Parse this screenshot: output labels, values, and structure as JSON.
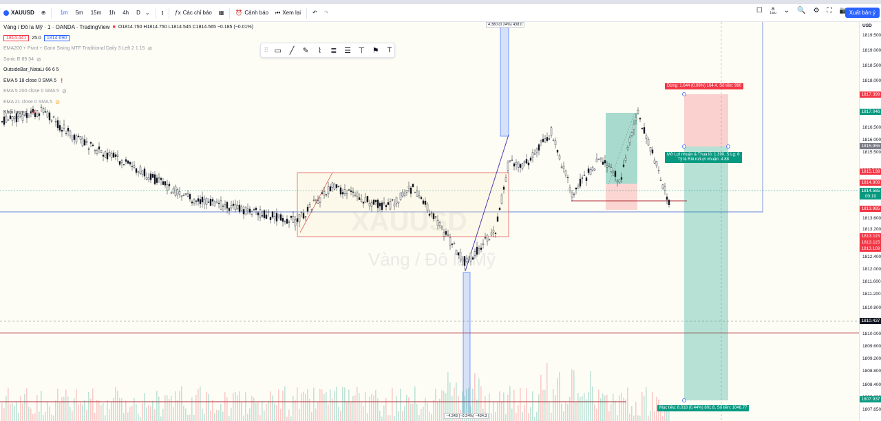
{
  "toolbar": {
    "symbol": "XAUUSD",
    "timeframes": [
      "1m",
      "5m",
      "15m",
      "1h",
      "4h",
      "D"
    ],
    "active_timeframe": "1m",
    "indicators_label": "Các chỉ báo",
    "alerts_label": "Cảnh báo",
    "replay_label": "Xem lại",
    "save_label": "Lưu",
    "export_label": "Xuất bản ý"
  },
  "legend": {
    "title": "Vàng / Đô la Mỹ · 1 · OANDA · TradingView",
    "ohlc": "O1814.750 H1814.750 L1814.545 C1814.565 −0.185 (−0.01%)",
    "sell_price": "1814.441",
    "spread": "25.0",
    "buy_price": "1814.690",
    "rows": [
      "EMA200 + Pivot + Gann Swing MTF Traditional Daily 3 Left 2 1 15",
      "Sonic R 89 34",
      "OutsideBar_NataLi 66 6 5",
      "EMA 5 18 close 0 SMA 5",
      "EMA 5 200 close 0 SMA 5",
      "EMA 21 close 0 SMA 5",
      "Khối lượng"
    ],
    "volume_value": "14"
  },
  "watermark": {
    "symbol": "XAUUSD",
    "name": "Vàng / Đô la Mỹ"
  },
  "axis": {
    "currency": "USD",
    "ticks": [
      "1819.500",
      "1819.000",
      "1818.500",
      "1818.000",
      "1817.500",
      "1816.500",
      "1816.000",
      "1815.500",
      "1815.000",
      "1814.500",
      "1813.600",
      "1813.200",
      "1812.400",
      "1812.000",
      "1811.600",
      "1811.200",
      "1810.800",
      "1810.000",
      "1809.600",
      "1809.200",
      "1808.800",
      "1808.400",
      "1808.000",
      "1807.650"
    ],
    "labels": [
      {
        "text": "1817.399",
        "color": "#f23645"
      },
      {
        "text": "1817.046",
        "color": "#089981"
      },
      {
        "text": "1815.955",
        "color": "#787b86"
      },
      {
        "text": "1815.139",
        "color": "#f23645"
      },
      {
        "text": "1814.809",
        "color": "#f23645"
      },
      {
        "text": "1814.565",
        "color": "#089981"
      },
      {
        "text": "00:10",
        "color": "#089981"
      },
      {
        "text": "1813.985",
        "color": "#f23645"
      },
      {
        "text": "1813.115",
        "color": "#f23645"
      },
      {
        "text": "1813.115",
        "color": "#f23645"
      },
      {
        "text": "1813.109",
        "color": "#f23645"
      },
      {
        "text": "1810.437",
        "color": "#131722"
      },
      {
        "text": "1807.937",
        "color": "#089981"
      }
    ]
  },
  "annotations": {
    "stop": "Dừng: 1.644 (0.09%) 164.4, Số tiền: 990",
    "open_line1": "Mở Lợi nhuận & Thua lỗ: 1.390, S.Lg: 6",
    "open_line2": "Tỷ lệ Rủi ro/Lợi nhuận: 4.88",
    "target": "Mục tiêu: 8.018 (0.44%) 801.8, Số tiền: 1048.77",
    "measure_up": "4.380 (0.24%) 438.0",
    "measure_down": "−4.343 (−0.24%) −434.3"
  }
}
